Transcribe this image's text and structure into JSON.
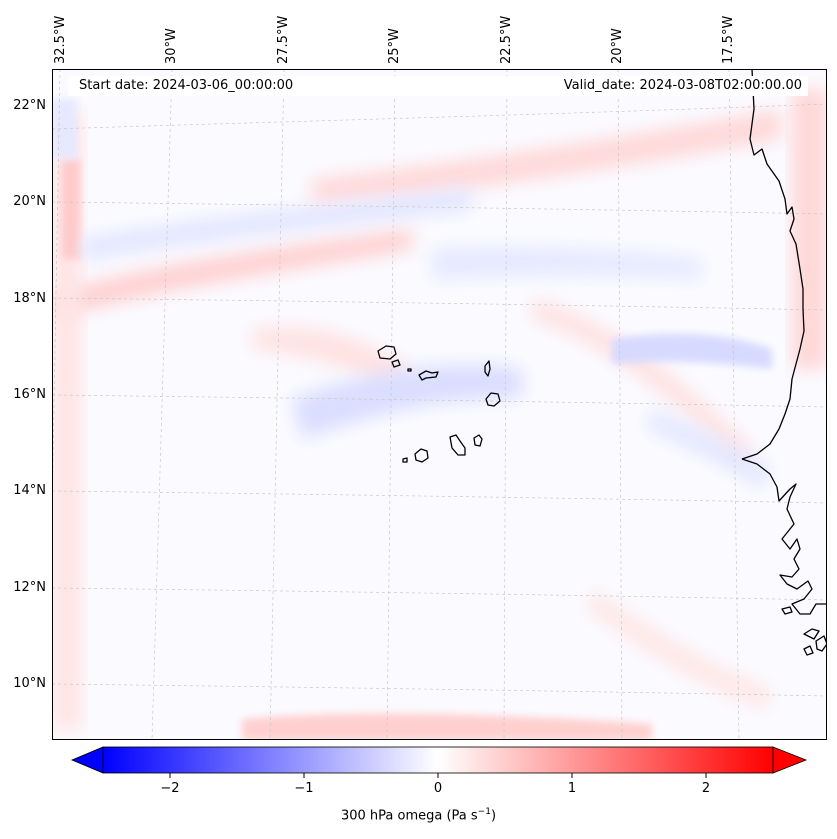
{
  "map": {
    "header": {
      "start_date": "Start date: 2024-03-06_00:00:00",
      "valid_date": "Valid_date: 2024-03-08T02:00:00.00"
    },
    "longitude_labels": [
      "32.5°W",
      "30°W",
      "27.5°W",
      "25°W",
      "22.5°W",
      "20°W",
      "17.5°W"
    ],
    "latitude_labels": [
      "22°N",
      "20°N",
      "18°N",
      "16°N",
      "14°N",
      "12°N",
      "10°N"
    ],
    "variable": "300 hPa omega",
    "colormap": "bwr",
    "colors": {
      "negative": "#0000ff",
      "zero": "#ffffff",
      "positive": "#ff0000",
      "coastline": "#000000",
      "gridline": "#c8c8c8"
    }
  },
  "colorbar": {
    "ticks": [
      "−2",
      "−1",
      "0",
      "1",
      "2"
    ],
    "tick_values": [
      -2,
      -1,
      0,
      1,
      2
    ],
    "range": [
      -2.5,
      2.5
    ],
    "label_main": "300 hPa omega (Pa s",
    "label_sup": "−1",
    "label_end": ")"
  }
}
